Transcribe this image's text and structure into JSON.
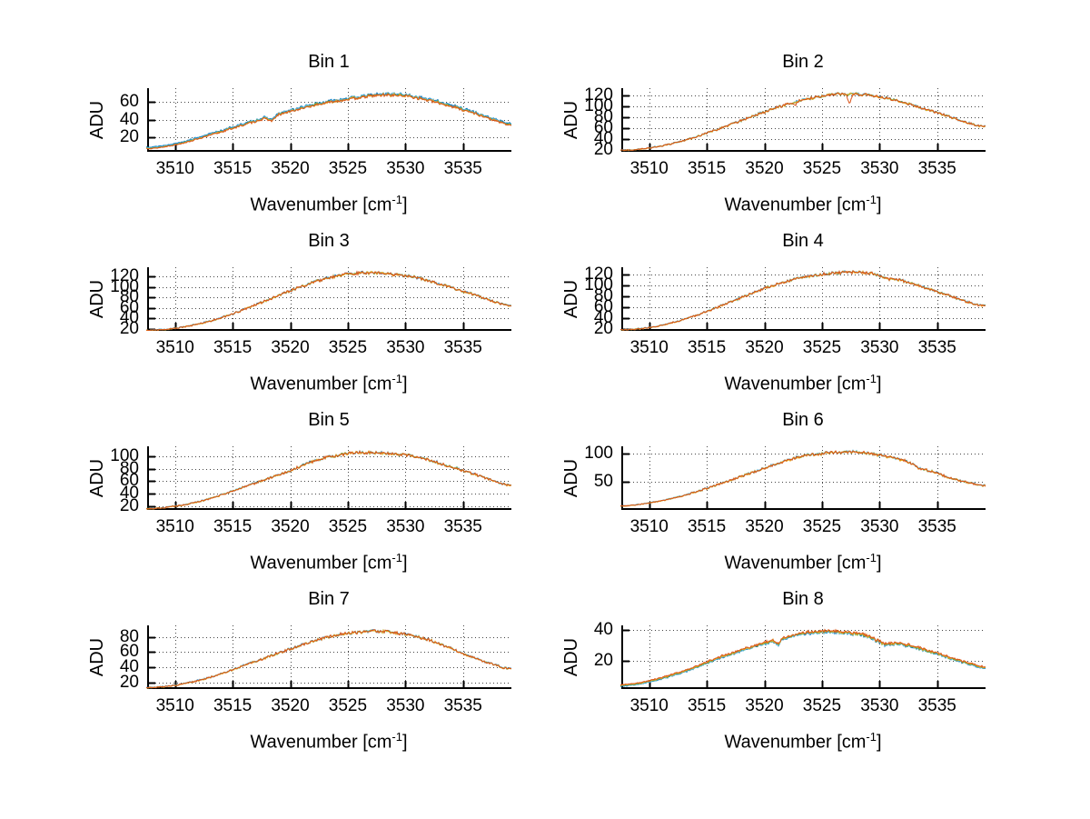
{
  "figure": {
    "background": "#ffffff"
  },
  "labels": {
    "ylabel": "ADU",
    "xlabel_base": "Wavenumber [cm",
    "xlabel_sup": "-1",
    "xlabel_close": "]"
  },
  "chart_data": {
    "type": "line",
    "title": "",
    "xlabel": "Wavenumber [cm⁻¹]",
    "ylabel": "ADU",
    "grid": true,
    "legend": null,
    "xlim": [
      3507.5,
      3539.2
    ],
    "xticks": [
      3510,
      3515,
      3520,
      3525,
      3530,
      3535
    ],
    "x_control": [
      3508,
      3510,
      3512,
      3514,
      3516,
      3518,
      3520,
      3522,
      3524,
      3526,
      3528,
      3530,
      3532,
      3534,
      3536,
      3538,
      3539
    ],
    "series_colors": {
      "blue": "#0072BD",
      "cyan": "#4DBEEE",
      "green": "#77AC30",
      "yellow": "#EDB120",
      "orange": "#D95319"
    },
    "subplots": [
      {
        "title": "Bin 1",
        "ylim": [
          3,
          76
        ],
        "yticks": [
          20,
          40,
          60
        ],
        "envelope": [
          7,
          11,
          18,
          26,
          34,
          42,
          49,
          56,
          61,
          65,
          68,
          67,
          62,
          55,
          47,
          38,
          34
        ],
        "noise_amplitude": 1.8,
        "spikes": [
          {
            "x": 3518.4,
            "drop": 5,
            "width": 0.6,
            "series": "all"
          }
        ],
        "series": [
          {
            "name": "blue",
            "color": "#0072BD",
            "offset": 1.6
          },
          {
            "name": "cyan",
            "color": "#4DBEEE",
            "offset": 0.9
          },
          {
            "name": "green",
            "color": "#77AC30",
            "offset": 0.4
          },
          {
            "name": "yellow",
            "color": "#EDB120",
            "offset": 0.1
          },
          {
            "name": "orange",
            "color": "#D95319",
            "offset": -0.1
          }
        ]
      },
      {
        "title": "Bin 2",
        "ylim": [
          16,
          134
        ],
        "yticks": [
          20,
          40,
          60,
          80,
          100,
          120
        ],
        "envelope": [
          19,
          23,
          31,
          43,
          58,
          74,
          90,
          104,
          115,
          122,
          123,
          118,
          108,
          95,
          82,
          68,
          63
        ],
        "noise_amplitude": 2.8,
        "spikes": [
          {
            "x": 3522.7,
            "drop": 7,
            "width": 0.25,
            "series": "orange"
          },
          {
            "x": 3527.4,
            "drop": 19,
            "width": 0.3,
            "series": "orange"
          }
        ],
        "series": [
          {
            "name": "blue",
            "color": "#0072BD",
            "offset": 0.25
          },
          {
            "name": "cyan",
            "color": "#4DBEEE",
            "offset": 0.12
          },
          {
            "name": "green",
            "color": "#77AC30",
            "offset": 0.0
          },
          {
            "name": "yellow",
            "color": "#EDB120",
            "offset": -0.12
          },
          {
            "name": "orange",
            "color": "#D95319",
            "offset": 0.05
          }
        ]
      },
      {
        "title": "Bin 3",
        "ylim": [
          16,
          138
        ],
        "yticks": [
          20,
          40,
          60,
          80,
          100,
          120
        ],
        "envelope": [
          17,
          21,
          29,
          41,
          57,
          75,
          93,
          109,
          121,
          127,
          126,
          122,
          112,
          99,
          85,
          70,
          64
        ],
        "noise_amplitude": 3.0,
        "spikes": [],
        "series": [
          {
            "name": "blue",
            "color": "#0072BD",
            "offset": 0.25
          },
          {
            "name": "cyan",
            "color": "#4DBEEE",
            "offset": 0.12
          },
          {
            "name": "green",
            "color": "#77AC30",
            "offset": 0.0
          },
          {
            "name": "yellow",
            "color": "#EDB120",
            "offset": -0.12
          },
          {
            "name": "orange",
            "color": "#D95319",
            "offset": 0.05
          }
        ]
      },
      {
        "title": "Bin 4",
        "ylim": [
          16,
          133
        ],
        "yticks": [
          20,
          40,
          60,
          80,
          100,
          120
        ],
        "envelope": [
          18,
          22,
          31,
          44,
          60,
          77,
          94,
          108,
          117,
          122,
          124,
          119,
          108,
          95,
          81,
          67,
          62
        ],
        "noise_amplitude": 2.8,
        "spikes": [
          {
            "x": 3530.6,
            "drop": 5,
            "width": 1.2,
            "series": "all"
          }
        ],
        "series": [
          {
            "name": "blue",
            "color": "#0072BD",
            "offset": 0.25
          },
          {
            "name": "cyan",
            "color": "#4DBEEE",
            "offset": 0.12
          },
          {
            "name": "green",
            "color": "#77AC30",
            "offset": 0.0
          },
          {
            "name": "yellow",
            "color": "#EDB120",
            "offset": -0.12
          },
          {
            "name": "orange",
            "color": "#D95319",
            "offset": 0.05
          }
        ]
      },
      {
        "title": "Bin 5",
        "ylim": [
          14,
          116
        ],
        "yticks": [
          20,
          40,
          60,
          80,
          100
        ],
        "envelope": [
          16,
          20,
          27,
          38,
          51,
          64,
          77,
          92,
          101,
          106,
          105,
          102,
          94,
          83,
          71,
          59,
          54
        ],
        "noise_amplitude": 2.4,
        "spikes": [],
        "series": [
          {
            "name": "blue",
            "color": "#0072BD",
            "offset": 0.25
          },
          {
            "name": "cyan",
            "color": "#4DBEEE",
            "offset": 0.12
          },
          {
            "name": "green",
            "color": "#77AC30",
            "offset": 0.0
          },
          {
            "name": "yellow",
            "color": "#EDB120",
            "offset": -0.12
          },
          {
            "name": "orange",
            "color": "#D95319",
            "offset": 0.05
          }
        ]
      },
      {
        "title": "Bin 6",
        "ylim": [
          2,
          112
        ],
        "yticks": [
          50,
          100
        ],
        "envelope": [
          9,
          14,
          22,
          33,
          46,
          60,
          74,
          88,
          97,
          101,
          102,
          97,
          88,
          74,
          58,
          48,
          44
        ],
        "noise_amplitude": 2.6,
        "spikes": [
          {
            "x": 3533.6,
            "drop": 5,
            "width": 1.0,
            "series": "all"
          }
        ],
        "series": [
          {
            "name": "blue",
            "color": "#0072BD",
            "offset": 0.25
          },
          {
            "name": "cyan",
            "color": "#4DBEEE",
            "offset": 0.12
          },
          {
            "name": "green",
            "color": "#77AC30",
            "offset": 0.0
          },
          {
            "name": "yellow",
            "color": "#EDB120",
            "offset": -0.12
          },
          {
            "name": "orange",
            "color": "#D95319",
            "offset": 0.05
          }
        ]
      },
      {
        "title": "Bin 7",
        "ylim": [
          11,
          95
        ],
        "yticks": [
          20,
          40,
          60,
          80
        ],
        "envelope": [
          13,
          16,
          22,
          31,
          42,
          53,
          64,
          74,
          82,
          86,
          87,
          83,
          76,
          64,
          52,
          42,
          38
        ],
        "noise_amplitude": 2.0,
        "spikes": [],
        "series": [
          {
            "name": "blue",
            "color": "#0072BD",
            "offset": 0.25
          },
          {
            "name": "cyan",
            "color": "#4DBEEE",
            "offset": 0.12
          },
          {
            "name": "green",
            "color": "#77AC30",
            "offset": 0.0
          },
          {
            "name": "yellow",
            "color": "#EDB120",
            "offset": -0.12
          },
          {
            "name": "orange",
            "color": "#D95319",
            "offset": 0.05
          }
        ]
      },
      {
        "title": "Bin 8",
        "ylim": [
          2,
          43
        ],
        "yticks": [
          20,
          40
        ],
        "envelope": [
          4.5,
          7,
          11,
          16,
          22,
          27,
          31.5,
          35.5,
          38.5,
          39,
          37.5,
          34.5,
          31,
          27,
          22.5,
          18,
          16
        ],
        "noise_amplitude": 1.0,
        "spikes": [
          {
            "x": 3521.2,
            "drop": 3.5,
            "width": 0.4,
            "series": "all"
          },
          {
            "x": 3530.4,
            "drop": 3,
            "width": 1.4,
            "series": "all"
          }
        ],
        "series": [
          {
            "name": "blue",
            "color": "#0072BD",
            "offset": -0.55
          },
          {
            "name": "cyan",
            "color": "#4DBEEE",
            "offset": -0.3
          },
          {
            "name": "green",
            "color": "#77AC30",
            "offset": -0.1
          },
          {
            "name": "yellow",
            "color": "#EDB120",
            "offset": 0.15
          },
          {
            "name": "orange",
            "color": "#D95319",
            "offset": 0.45
          }
        ]
      }
    ]
  }
}
